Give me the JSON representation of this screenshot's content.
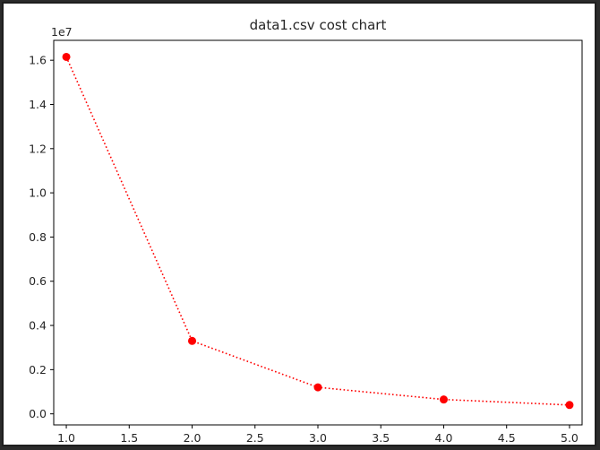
{
  "chart_data": {
    "type": "line",
    "title": "data1.csv cost chart",
    "xlabel": "",
    "ylabel": "",
    "y_offset_label": "1e7",
    "xlim": [
      0.9,
      5.1
    ],
    "ylim": [
      -0.05,
      1.69
    ],
    "x_ticks": [
      1.0,
      1.5,
      2.0,
      2.5,
      3.0,
      3.5,
      4.0,
      4.5,
      5.0
    ],
    "x_tick_labels": [
      "1.0",
      "1.5",
      "2.0",
      "2.5",
      "3.0",
      "3.5",
      "4.0",
      "4.5",
      "5.0"
    ],
    "y_ticks": [
      0.0,
      0.2,
      0.4,
      0.6,
      0.8,
      1.0,
      1.2,
      1.4,
      1.6
    ],
    "y_tick_labels": [
      "0.0",
      "0.2",
      "0.4",
      "0.6",
      "0.8",
      "1.0",
      "1.2",
      "1.4",
      "1.6"
    ],
    "grid": false,
    "series": [
      {
        "color": "#ff0000",
        "line_style": "dotted",
        "marker": "circle",
        "x": [
          1.0,
          2.0,
          3.0,
          4.0,
          5.0
        ],
        "y": [
          1.615,
          0.33,
          0.12,
          0.065,
          0.04
        ]
      }
    ]
  }
}
